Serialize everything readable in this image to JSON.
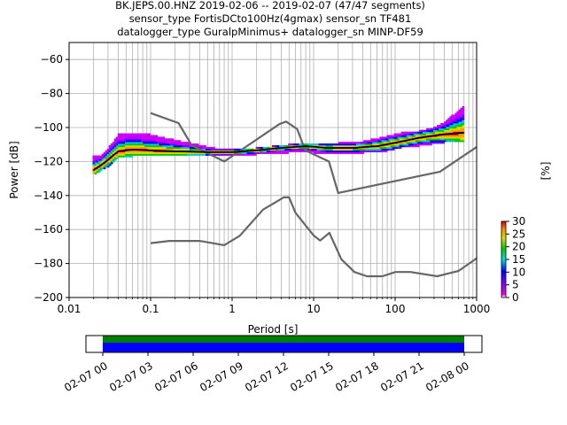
{
  "title_lines": [
    "BK.JEPS.00.HNZ   2019-02-06 -- 2019-02-07  (47/47 segments)",
    "sensor_type FortisDCto100Hz(4gmax) sensor_sn TF481",
    "datalogger_type GuralpMinimus+ datalogger_sn MINP-DF59"
  ],
  "colors": {
    "model_line": "#666666",
    "mean_line": "#000000",
    "grid": "#b0b0b0",
    "coverage_top": "#008000",
    "coverage_bottom": "#0000ff"
  },
  "chart_data": [
    {
      "type": "heatmap",
      "title": "BK.JEPS.00.HNZ   2019-02-06 -- 2019-02-07  (47/47 segments)",
      "xlabel": "Period [s]",
      "ylabel": "Power [dB]",
      "xscale": "log",
      "xlim": [
        0.01,
        1000
      ],
      "ylim": [
        -200,
        -50
      ],
      "xticks": [
        "0.01",
        "0.1",
        "1",
        "10",
        "100",
        "1000"
      ],
      "yticks": [
        "−60",
        "−80",
        "−100",
        "−120",
        "−140",
        "−160",
        "−180",
        "−200"
      ],
      "grid": true,
      "colorbar": {
        "label": "[%]",
        "range": [
          0,
          30
        ],
        "ticks": [
          "0",
          "5",
          "10",
          "15",
          "20",
          "25",
          "30"
        ]
      },
      "noise_model_high": {
        "x": [
          0.1,
          0.22,
          0.32,
          0.8,
          3.8,
          4.6,
          6.3,
          7.9,
          15.4,
          20,
          354.8,
          1000
        ],
        "y": [
          -91.5,
          -97.4,
          -110.5,
          -120,
          -98,
          -96.5,
          -101,
          -113.5,
          -120,
          -138.5,
          -126,
          -111.5
        ]
      },
      "noise_model_low": {
        "x": [
          0.1,
          0.17,
          0.4,
          0.8,
          1.24,
          2.4,
          4.3,
          5.0,
          6.0,
          10,
          12,
          15.6,
          21.9,
          31.6,
          45,
          70,
          101,
          154,
          328,
          600,
          1000
        ],
        "y": [
          -168,
          -166.7,
          -166.7,
          -169.2,
          -163.7,
          -148.3,
          -141.1,
          -141.1,
          -150.2,
          -163.5,
          -166.5,
          -162,
          -177.5,
          -185,
          -187.5,
          -187.5,
          -185,
          -185,
          -187.5,
          -184.4,
          -177
        ]
      },
      "mean_curve": {
        "x": [
          0.02,
          0.025,
          0.03,
          0.04,
          0.06,
          0.1,
          0.2,
          0.5,
          1,
          2,
          4,
          8,
          15,
          30,
          60,
          100,
          200,
          400,
          700
        ],
        "y": [
          -125,
          -122,
          -119,
          -114,
          -113,
          -113.5,
          -114,
          -114.5,
          -114.5,
          -113.5,
          -112,
          -111,
          -112,
          -112,
          -111,
          -109,
          -106,
          -104,
          -103
        ]
      },
      "psd_upper_envelope": {
        "x": [
          0.025,
          0.03,
          0.035,
          0.04,
          0.06,
          0.1,
          0.15,
          0.3,
          0.6,
          1,
          2,
          5,
          10,
          20,
          40,
          80,
          120,
          200,
          300,
          400,
          500,
          700
        ],
        "y": [
          -117,
          -113,
          -109,
          -105,
          -104,
          -105,
          -107,
          -110,
          -113,
          -114,
          -113,
          -111,
          -110,
          -110,
          -109,
          -106,
          -104,
          -103,
          -101,
          -98,
          -94,
          -88
        ]
      },
      "psd_lower_envelope": {
        "x": [
          0.02,
          0.03,
          0.04,
          0.06,
          0.1,
          0.2,
          0.5,
          1,
          2,
          5,
          10,
          20,
          40,
          80,
          120,
          200,
          400,
          700
        ],
        "y": [
          -127,
          -122,
          -117,
          -116,
          -116,
          -116,
          -116,
          -116,
          -115,
          -114,
          -114,
          -115,
          -114,
          -113,
          -111,
          -110,
          -108,
          -108
        ]
      }
    },
    {
      "type": "bar",
      "description_role": "data coverage timeline",
      "xticks": [
        "02-07 00",
        "02-07 03",
        "02-07 06",
        "02-07 09",
        "02-07 12",
        "02-07 15",
        "02-07 18",
        "02-07 21",
        "02-08 00"
      ],
      "xlim": [
        "02-06 22:50",
        "02-08 01:00"
      ],
      "coverage_start": "02-07 00",
      "coverage_end": "02-08 00"
    }
  ]
}
